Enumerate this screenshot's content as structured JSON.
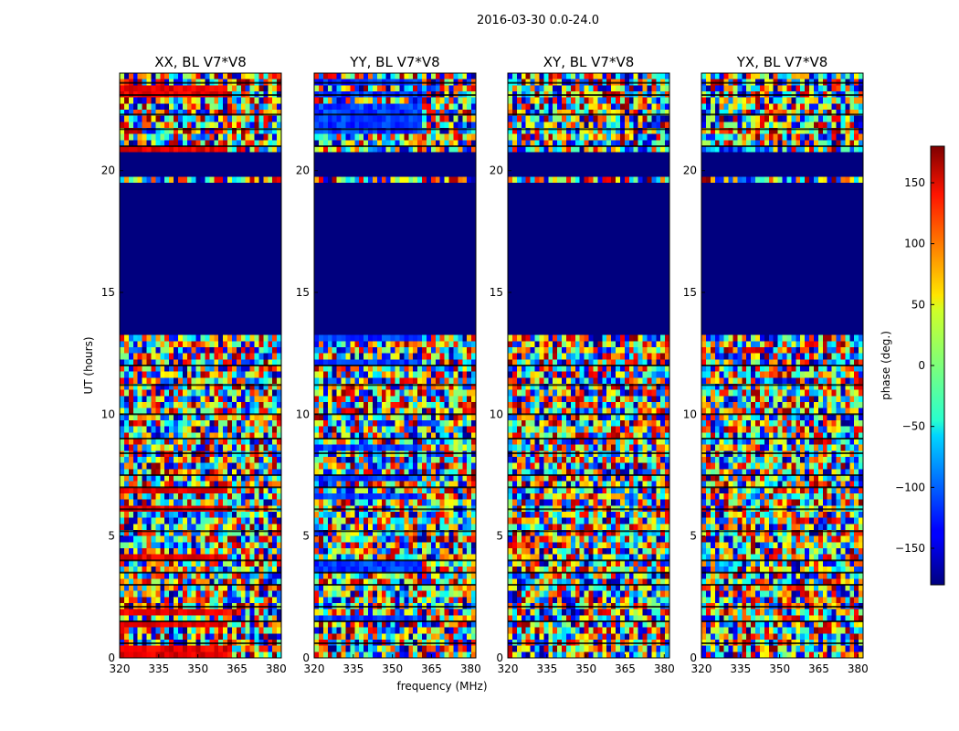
{
  "chart_data": {
    "type": "heatmap",
    "suptitle": "2016-03-30 0.0-24.0",
    "xlabel": "frequency (MHz)",
    "ylabel": "UT (hours)",
    "xlim": [
      320,
      382
    ],
    "ylim": [
      0,
      24
    ],
    "xticks": [
      "320",
      "335",
      "350",
      "365",
      "380"
    ],
    "xtick_values": [
      320,
      335,
      350,
      365,
      380
    ],
    "yticks": [
      "0",
      "5",
      "10",
      "15",
      "20"
    ],
    "ytick_values": [
      0,
      5,
      10,
      15,
      20
    ],
    "panels": [
      {
        "title": "XX, BL V7*V8",
        "tint": "red"
      },
      {
        "title": "YY, BL V7*V8",
        "tint": "blue"
      },
      {
        "title": "XY, BL V7*V8",
        "tint": "none"
      },
      {
        "title": "YX, BL V7*V8",
        "tint": "none"
      }
    ],
    "flagged_ranges_hours": [
      [
        13.3,
        19.5
      ],
      [
        19.8,
        20.8
      ]
    ],
    "gap_rows_hours": [
      0.6,
      1.5,
      2.1,
      3.0,
      3.5,
      4.0,
      5.2,
      6.1,
      7.0,
      7.5,
      8.4,
      9.0,
      10.0,
      11.2,
      12.0,
      21.0,
      21.7,
      22.3,
      23.1,
      23.6
    ],
    "colorbar": {
      "label": "phase (deg.)",
      "range": [
        -180,
        180
      ],
      "ticks": [
        "150",
        "100",
        "50",
        "0",
        "−50",
        "−100",
        "−150"
      ],
      "tick_values": [
        150,
        100,
        50,
        0,
        -50,
        -100,
        -150
      ],
      "colormap": "jet",
      "flag_color": "#00007f"
    }
  }
}
